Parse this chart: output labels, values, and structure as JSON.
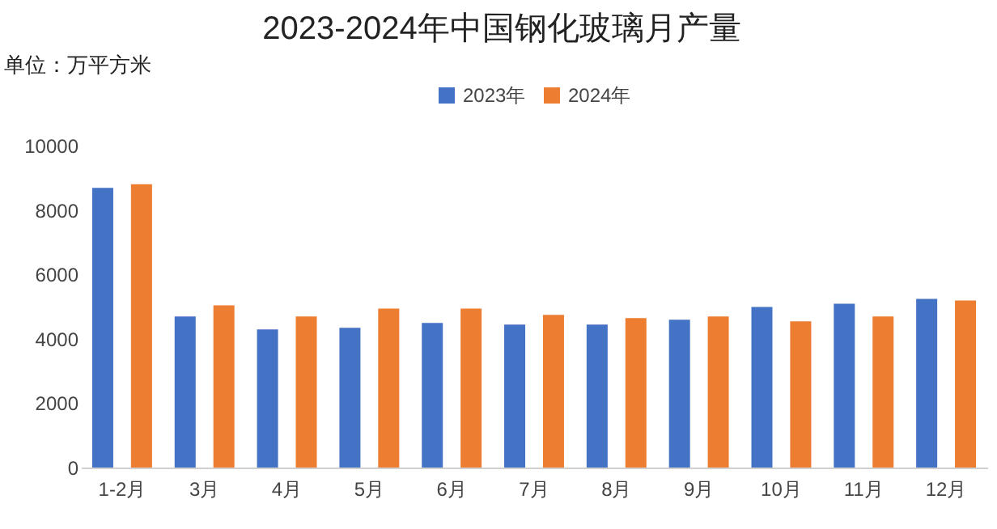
{
  "chart_data": {
    "type": "bar",
    "title": "2023-2024年中国钢化玻璃月产量",
    "ylabel": "单位：万平方米",
    "categories": [
      "1-2月",
      "3月",
      "4月",
      "5月",
      "6月",
      "7月",
      "8月",
      "9月",
      "10月",
      "11月",
      "12月"
    ],
    "series": [
      {
        "name": "2023年",
        "color": "#4472c4",
        "values": [
          8690,
          4690,
          4290,
          4340,
          4490,
          4440,
          4440,
          4590,
          4990,
          5090,
          5240
        ]
      },
      {
        "name": "2024年",
        "color": "#ed7d31",
        "values": [
          8800,
          5040,
          4690,
          4940,
          4940,
          4740,
          4640,
          4690,
          4540,
          4690,
          5190
        ]
      }
    ],
    "ylim": [
      0,
      10000
    ],
    "yticks": [
      0,
      2000,
      4000,
      6000,
      8000,
      10000
    ],
    "grid": false,
    "legend": "top"
  }
}
